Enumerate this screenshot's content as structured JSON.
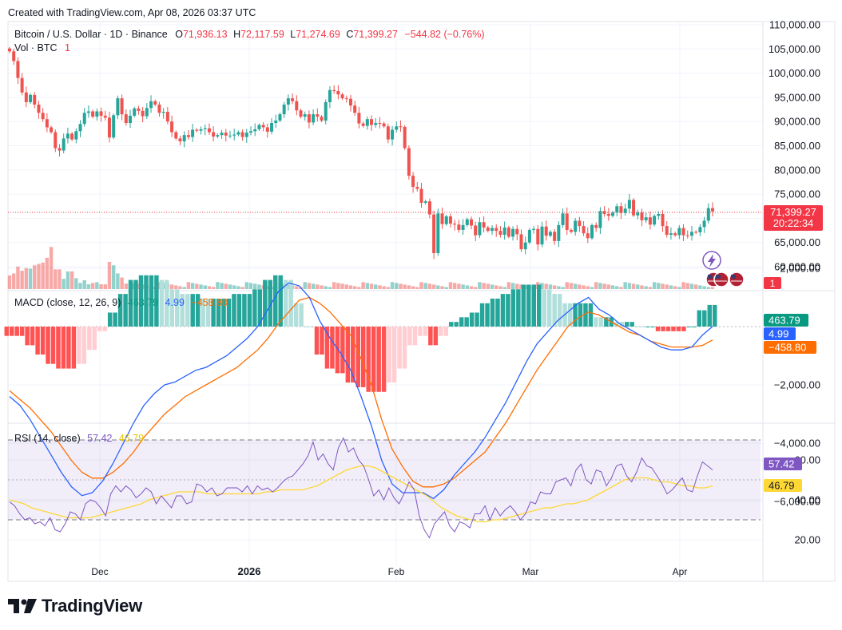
{
  "header": {
    "created_text": "Created with TradingView.com, Apr 08, 2026 03:37 UTC",
    "symbol_text": "Bitcoin / U.S. Dollar · 1D · Binance",
    "open_label": "O",
    "open_value": "71,936.13",
    "high_label": "H",
    "high_value": "72,117.59",
    "low_label": "L",
    "low_value": "71,274.69",
    "close_label": "C",
    "close_value": "71,399.27",
    "change_text": "−544.82 (−0.76%)",
    "vol_label": "Vol · BTC",
    "vol_value": "1"
  },
  "price_badge": {
    "price": "71,399.27",
    "countdown": "20:22:34"
  },
  "volume_badge": "1",
  "macd": {
    "label": "MACD (close, 12, 26, 9)",
    "hist_value": "463.79",
    "macd_value": "4.99",
    "signal_value": "−458.80",
    "badge_hist": "463.79",
    "badge_macd": "4.99",
    "badge_signal": "−458.80"
  },
  "rsi": {
    "label": "RSI (14, close)",
    "rsi_value": "57.42",
    "ma_value": "46.79",
    "badge_rsi": "57.42",
    "badge_ma": "46.79"
  },
  "brand": {
    "name": "TradingView"
  },
  "colors": {
    "up": "#26a69a",
    "down": "#ef5350",
    "macd_line": "#2962ff",
    "signal_line": "#ff6d00",
    "rsi_line": "#7e57c2",
    "rsi_ma": "#fdd835",
    "price_badge": "#f23645"
  },
  "chart_data": [
    {
      "type": "candlestick",
      "title": "Bitcoin / U.S. Dollar · 1D · Binance",
      "x_ticks": [
        "Dec",
        "2026",
        "Feb",
        "Mar",
        "Apr"
      ],
      "y_ticks": [
        "110,000.00",
        "105,000.00",
        "100,000.00",
        "95,000.00",
        "90,000.00",
        "85,000.00",
        "80,000.00",
        "75,000.00",
        "70,000.00",
        "65,000.00",
        "60,000.00"
      ],
      "ylim": [
        57000,
        110000
      ],
      "last_close": 71399.27,
      "close_series": [
        104500,
        102500,
        99000,
        96000,
        94000,
        95500,
        93500,
        91800,
        90500,
        88800,
        87800,
        84500,
        84000,
        86500,
        87500,
        86300,
        88000,
        89500,
        91800,
        92100,
        91000,
        92100,
        91200,
        90800,
        86700,
        91300,
        94800,
        91500,
        89700,
        91200,
        92700,
        92200,
        91100,
        92800,
        94200,
        93500,
        91800,
        92000,
        90000,
        87800,
        86500,
        85900,
        87200,
        86800,
        88300,
        88100,
        88400,
        88600,
        87800,
        86900,
        87200,
        87700,
        87100,
        87100,
        87300,
        87800,
        86800,
        87700,
        88000,
        88400,
        89300,
        88800,
        87900,
        89700,
        90200,
        91500,
        93500,
        94800,
        94200,
        92300,
        91000,
        91500,
        89800,
        91500,
        91000,
        90200,
        94000,
        96500,
        96300,
        95600,
        94800,
        94700,
        93300,
        91800,
        89600,
        89100,
        90500,
        89300,
        89700,
        89600,
        89000,
        86300,
        88300,
        89000,
        88900,
        84500,
        78800,
        76500,
        76100,
        73200,
        73500,
        70800,
        62800,
        71000,
        68800,
        70400,
        68900,
        68700,
        67600,
        68600,
        69800,
        68500,
        66500,
        69200,
        68100,
        67400,
        68000,
        67400,
        66600,
        68100,
        66200,
        67800,
        66700,
        63600,
        65000,
        67600,
        67800,
        64600,
        68300,
        66400,
        67200,
        65300,
        68600,
        71000,
        67600,
        67200,
        69500,
        68400,
        66900,
        65900,
        68600,
        68000,
        71500,
        70900,
        70500,
        71200,
        72500,
        71100,
        72000,
        73800,
        70600,
        71200,
        69600,
        70200,
        68700,
        70500,
        70900,
        68400,
        66600,
        66900,
        66500,
        68000,
        66500,
        66400,
        67200,
        67100,
        68200,
        69500,
        72100,
        71400
      ],
      "volume_btc_relative": [
        0.2,
        0.23,
        0.33,
        0.27,
        0.31,
        0.3,
        0.35,
        0.37,
        0.39,
        0.46,
        0.62,
        0.29,
        0.29,
        0.15,
        0.26,
        0.26,
        0.16,
        0.09,
        0.13,
        0.07,
        0.09,
        0.1,
        0.07,
        0.07,
        0.4,
        0.35,
        0.23,
        0.17,
        0.08,
        0.06
      ]
    },
    {
      "type": "macd",
      "title": "MACD (close, 12, 26, 9)",
      "y_ticks": [
        "2,000.00",
        "−2,000.00",
        "−4,000.00",
        "−6,000.00"
      ],
      "ylim": [
        -6500,
        2200
      ],
      "macd": [
        -2400,
        -2700,
        -3200,
        -3800,
        -4400,
        -5000,
        -5500,
        -5800,
        -5700,
        -5300,
        -4700,
        -4000,
        -3300,
        -2700,
        -2300,
        -2000,
        -1900,
        -1700,
        -1500,
        -1400,
        -1200,
        -1000,
        -700,
        -400,
        0,
        600,
        1200,
        1500,
        1400,
        1000,
        200,
        -400,
        -900,
        -1500,
        -2400,
        -3400,
        -4600,
        -5400,
        -5700,
        -5700,
        -5700,
        -5900,
        -5600,
        -5100,
        -4700,
        -4300,
        -3800,
        -3200,
        -2600,
        -1900,
        -1200,
        -600,
        -200,
        200,
        500,
        800,
        1000,
        600,
        400,
        100,
        -100,
        -300,
        -500,
        -700,
        -800,
        -800,
        -700,
        -300,
        5
      ],
      "signal": [
        -2200,
        -2500,
        -2800,
        -3200,
        -3600,
        -4100,
        -4600,
        -5000,
        -5200,
        -5200,
        -5000,
        -4700,
        -4300,
        -3800,
        -3400,
        -3000,
        -2700,
        -2400,
        -2200,
        -2000,
        -1800,
        -1600,
        -1400,
        -1100,
        -800,
        -400,
        100,
        500,
        900,
        1000,
        800,
        500,
        100,
        -300,
        -1100,
        -2000,
        -3200,
        -4200,
        -4800,
        -5300,
        -5500,
        -5500,
        -5400,
        -5200,
        -4900,
        -4600,
        -4300,
        -3800,
        -3300,
        -2700,
        -2100,
        -1500,
        -1000,
        -500,
        0,
        300,
        500,
        400,
        200,
        0,
        -200,
        -300,
        -500,
        -600,
        -700,
        -700,
        -700,
        -650,
        -459
      ],
      "histogram_last": 463.79
    },
    {
      "type": "line",
      "title": "RSI (14, close)",
      "y_ticks": [
        "60.00",
        "40.00",
        "20.00"
      ],
      "ylim": [
        14,
        73
      ],
      "levels": [
        70,
        50,
        30
      ],
      "series": [
        {
          "name": "RSI",
          "values": [
            39,
            37,
            33,
            30,
            31,
            28,
            29,
            27,
            31,
            25,
            24,
            28,
            34,
            33,
            30,
            38,
            40,
            39,
            36,
            32,
            43,
            47,
            44,
            47,
            45,
            41,
            43,
            46,
            44,
            38,
            42,
            39,
            36,
            42,
            42,
            38,
            39,
            48,
            47,
            44,
            46,
            42,
            43,
            46,
            46,
            46,
            44,
            47,
            43,
            47,
            45,
            46,
            44,
            46,
            49,
            51,
            52,
            55,
            58,
            62,
            69,
            60,
            63,
            58,
            55,
            66,
            71,
            64,
            66,
            60,
            57,
            50,
            42,
            45,
            40,
            46,
            41,
            38,
            43,
            49,
            45,
            32,
            25,
            21,
            28,
            31,
            34,
            27,
            24,
            29,
            28,
            26,
            33,
            33,
            37,
            30,
            36,
            32,
            35,
            37,
            34,
            30,
            33,
            39,
            38,
            44,
            43,
            43,
            49,
            50,
            51,
            47,
            55,
            58,
            50,
            48,
            55,
            54,
            47,
            51,
            57,
            58,
            52,
            49,
            54,
            61,
            57,
            56,
            52,
            48,
            43,
            45,
            48,
            51,
            45,
            44,
            52,
            59,
            57,
            55
          ]
        },
        {
          "name": "MA",
          "values": [
            40,
            39,
            38,
            36,
            35,
            34,
            33,
            32,
            31,
            31,
            31,
            31,
            32,
            33,
            34,
            35,
            36,
            37,
            38,
            40,
            41,
            42,
            43,
            44,
            44,
            44,
            44,
            43,
            43,
            43,
            43,
            43,
            43,
            43,
            43,
            44,
            44,
            45,
            45,
            45,
            45,
            46,
            47,
            49,
            51,
            53,
            55,
            56,
            57,
            57,
            56,
            54,
            52,
            50,
            48,
            46,
            44,
            42,
            39,
            36,
            34,
            32,
            31,
            30,
            29,
            29,
            30,
            30,
            31,
            32,
            33,
            34,
            35,
            36,
            36,
            37,
            38,
            38,
            39,
            40,
            42,
            44,
            46,
            48,
            50,
            51,
            51,
            51,
            50,
            49,
            49,
            48,
            47,
            47,
            46,
            46,
            47
          ]
        }
      ]
    }
  ]
}
